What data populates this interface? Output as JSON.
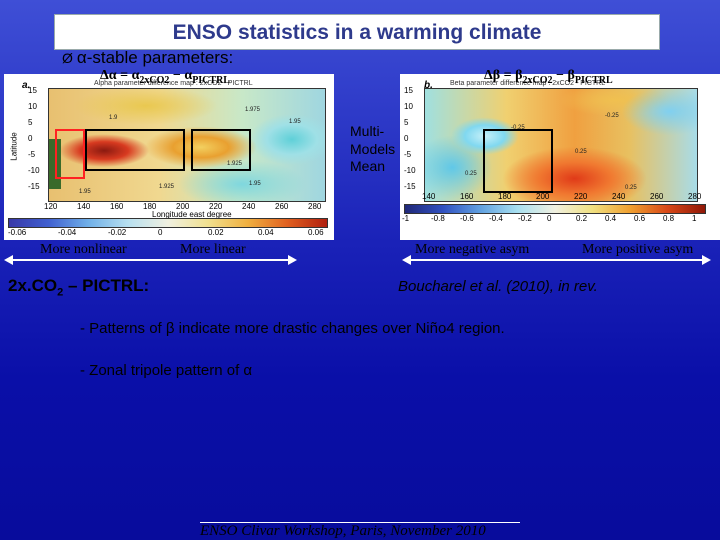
{
  "title": "ENSO statistics in a warming climate",
  "bullet": {
    "symbol": "Ø",
    "text": "α-stable parameters:"
  },
  "formulas": {
    "alpha": {
      "lhs": "Δα = α",
      "sub1": "2xCO2",
      "minus": " − α",
      "sub2": "PICTRL"
    },
    "beta": {
      "lhs": "Δβ = β",
      "sub1": "2xCO2",
      "minus": " − β",
      "sub2": "PICTRL"
    }
  },
  "left_map": {
    "letter": "a.",
    "map_title": "Alpha parameter difference map : 2xCO2 - PICTRL",
    "y_axis_label": "Latitude",
    "y_ticks": [
      "15",
      "10",
      "5",
      "0",
      "-5",
      "-10",
      "-15"
    ],
    "x_ticks": [
      "120",
      "140",
      "160",
      "180",
      "200",
      "220",
      "240",
      "260",
      "280"
    ],
    "x_axis_label": "Longitude east degree",
    "colorbar_ticks": [
      "-0.06",
      "-0.04",
      "-0.02",
      "0",
      "0.02",
      "0.04",
      "0.06"
    ],
    "contours": [
      "1.975",
      "1.95",
      "1.925",
      "1.9",
      "1.95",
      "1.925",
      "1.95"
    ]
  },
  "right_map": {
    "letter": "b.",
    "map_title": "Beta parameter difference map : 2xCO2 - PICTRL",
    "y_ticks": [
      "15",
      "10",
      "5",
      "0",
      "-5",
      "-10",
      "-15"
    ],
    "x_ticks": [
      "140",
      "160",
      "180",
      "200",
      "220",
      "240",
      "260",
      "280"
    ],
    "colorbar_ticks": [
      "-1",
      "-0.8",
      "-0.6",
      "-0.4",
      "-0.2",
      "0",
      "0.2",
      "0.4",
      "0.6",
      "0.8",
      "1"
    ],
    "contours": [
      "-0.25",
      "-0.25",
      "0.25",
      "0.25",
      "0.25"
    ]
  },
  "multi_label": [
    "Multi-",
    "Models",
    "Mean"
  ],
  "scale_labels": {
    "more_nonlinear": "More nonlinear",
    "more_linear": "More linear",
    "more_negative_asym": "More negative asym",
    "more_positive_asym": "More positive asym"
  },
  "period": {
    "prefix": "2x.CO",
    "sub": "2",
    "suffix": " – PICTRL:"
  },
  "citation": "Boucharel et al. (2010), in rev.",
  "points": [
    "- Patterns of β indicate more drastic changes over Niño4 region.",
    "- Zonal tripole pattern of α"
  ],
  "footer": "ENSO Clivar Workshop, Paris, November 2010",
  "colors": {
    "title_text": "#2e3a8c",
    "background_top": "#3f4fd6",
    "background_bottom": "#080c9c"
  }
}
